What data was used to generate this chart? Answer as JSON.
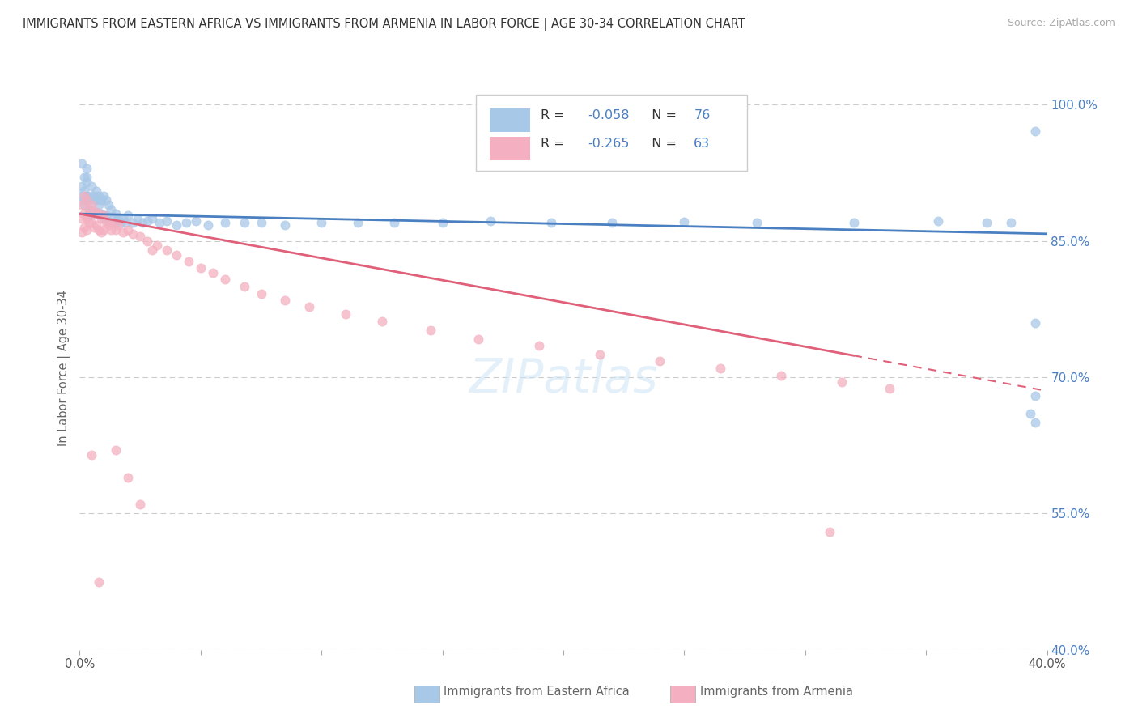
{
  "title": "IMMIGRANTS FROM EASTERN AFRICA VS IMMIGRANTS FROM ARMENIA IN LABOR FORCE | AGE 30-34 CORRELATION CHART",
  "source": "Source: ZipAtlas.com",
  "ylabel": "In Labor Force | Age 30-34",
  "xlim": [
    0.0,
    0.4
  ],
  "ylim": [
    0.4,
    1.02
  ],
  "xticks": [
    0.0,
    0.05,
    0.1,
    0.15,
    0.2,
    0.25,
    0.3,
    0.35,
    0.4
  ],
  "yticks_right": [
    0.4,
    0.55,
    0.7,
    0.85,
    1.0
  ],
  "ytick_labels_right": [
    "40.0%",
    "55.0%",
    "70.0%",
    "85.0%",
    "100.0%"
  ],
  "xtick_labels": [
    "0.0%",
    "",
    "",
    "",
    "",
    "",
    "",
    "",
    "40.0%"
  ],
  "blue_R": -0.058,
  "blue_N": 76,
  "pink_R": -0.265,
  "pink_N": 63,
  "blue_color": "#a8c8e8",
  "pink_color": "#f4b0c0",
  "blue_line_color": "#4a7fc1",
  "pink_line_color": "#e0607a",
  "R_N_color": "#4a7fc1",
  "background_color": "#ffffff",
  "blue_trend_x0": 0.0,
  "blue_trend_y0": 0.88,
  "blue_trend_x1": 0.4,
  "blue_trend_y1": 0.858,
  "pink_trend_x0": 0.0,
  "pink_trend_y0": 0.88,
  "pink_trend_x1_solid": 0.32,
  "pink_trend_y1_solid": 0.724,
  "pink_trend_x1_dash": 0.4,
  "pink_trend_y1_dash": 0.685,
  "blue_scatter_x": [
    0.001,
    0.001,
    0.001,
    0.002,
    0.002,
    0.002,
    0.002,
    0.003,
    0.003,
    0.003,
    0.003,
    0.004,
    0.004,
    0.004,
    0.005,
    0.005,
    0.005,
    0.006,
    0.006,
    0.006,
    0.007,
    0.007,
    0.007,
    0.008,
    0.008,
    0.008,
    0.009,
    0.009,
    0.01,
    0.01,
    0.011,
    0.011,
    0.012,
    0.012,
    0.013,
    0.014,
    0.015,
    0.015,
    0.016,
    0.017,
    0.018,
    0.019,
    0.02,
    0.022,
    0.024,
    0.026,
    0.028,
    0.03,
    0.033,
    0.036,
    0.04,
    0.044,
    0.048,
    0.053,
    0.06,
    0.068,
    0.075,
    0.085,
    0.1,
    0.115,
    0.13,
    0.15,
    0.17,
    0.195,
    0.22,
    0.25,
    0.28,
    0.32,
    0.355,
    0.375,
    0.385,
    0.395,
    0.395,
    0.395,
    0.393,
    0.395
  ],
  "blue_scatter_y": [
    0.935,
    0.91,
    0.9,
    0.92,
    0.905,
    0.895,
    0.89,
    0.93,
    0.92,
    0.915,
    0.9,
    0.895,
    0.885,
    0.88,
    0.91,
    0.9,
    0.885,
    0.9,
    0.895,
    0.88,
    0.905,
    0.895,
    0.88,
    0.9,
    0.89,
    0.88,
    0.895,
    0.88,
    0.9,
    0.875,
    0.895,
    0.878,
    0.89,
    0.872,
    0.885,
    0.875,
    0.88,
    0.87,
    0.875,
    0.87,
    0.875,
    0.87,
    0.878,
    0.87,
    0.875,
    0.87,
    0.872,
    0.875,
    0.87,
    0.872,
    0.868,
    0.87,
    0.872,
    0.868,
    0.87,
    0.87,
    0.87,
    0.868,
    0.87,
    0.87,
    0.87,
    0.87,
    0.872,
    0.87,
    0.87,
    0.871,
    0.87,
    0.87,
    0.872,
    0.87,
    0.87,
    0.971,
    0.76,
    0.68,
    0.66,
    0.65
  ],
  "pink_scatter_x": [
    0.001,
    0.001,
    0.001,
    0.002,
    0.002,
    0.002,
    0.003,
    0.003,
    0.003,
    0.004,
    0.004,
    0.005,
    0.005,
    0.006,
    0.006,
    0.007,
    0.007,
    0.008,
    0.008,
    0.009,
    0.009,
    0.01,
    0.01,
    0.011,
    0.012,
    0.013,
    0.014,
    0.015,
    0.016,
    0.018,
    0.02,
    0.022,
    0.025,
    0.028,
    0.032,
    0.036,
    0.04,
    0.045,
    0.05,
    0.055,
    0.06,
    0.068,
    0.075,
    0.085,
    0.095,
    0.11,
    0.125,
    0.145,
    0.165,
    0.19,
    0.215,
    0.24,
    0.265,
    0.29,
    0.315,
    0.335,
    0.015,
    0.02,
    0.025,
    0.005,
    0.008,
    0.03,
    0.31
  ],
  "pink_scatter_y": [
    0.89,
    0.875,
    0.86,
    0.9,
    0.88,
    0.865,
    0.895,
    0.875,
    0.862,
    0.885,
    0.87,
    0.89,
    0.87,
    0.88,
    0.865,
    0.882,
    0.868,
    0.88,
    0.862,
    0.875,
    0.86,
    0.878,
    0.862,
    0.87,
    0.868,
    0.862,
    0.87,
    0.862,
    0.868,
    0.86,
    0.862,
    0.858,
    0.855,
    0.85,
    0.845,
    0.84,
    0.835,
    0.828,
    0.82,
    0.815,
    0.808,
    0.8,
    0.792,
    0.785,
    0.778,
    0.77,
    0.762,
    0.752,
    0.742,
    0.735,
    0.725,
    0.718,
    0.71,
    0.702,
    0.695,
    0.688,
    0.62,
    0.59,
    0.56,
    0.615,
    0.475,
    0.84,
    0.53
  ]
}
